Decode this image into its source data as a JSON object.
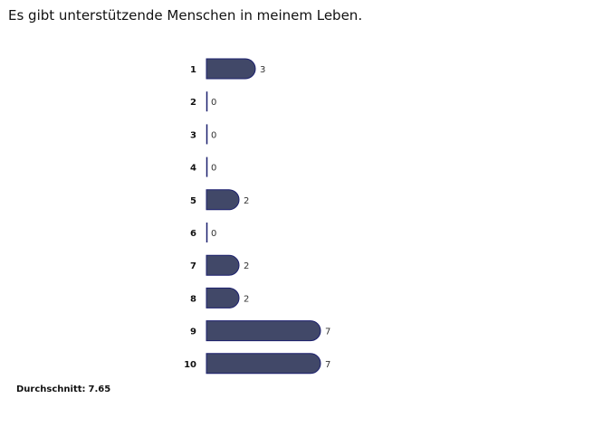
{
  "chart_data": {
    "type": "bar",
    "orientation": "horizontal",
    "title": "Es gibt unterstützende Menschen in meinem Leben.",
    "categories": [
      "1",
      "2",
      "3",
      "4",
      "5",
      "6",
      "7",
      "8",
      "9",
      "10"
    ],
    "values": [
      3,
      0,
      0,
      0,
      2,
      0,
      2,
      2,
      7,
      7
    ],
    "grid": false,
    "colors": {
      "bar_fill": "#414868",
      "bar_stroke": "#1b1f6e"
    }
  },
  "summary": {
    "label": "Durchschnitt:",
    "value": "7.65"
  }
}
